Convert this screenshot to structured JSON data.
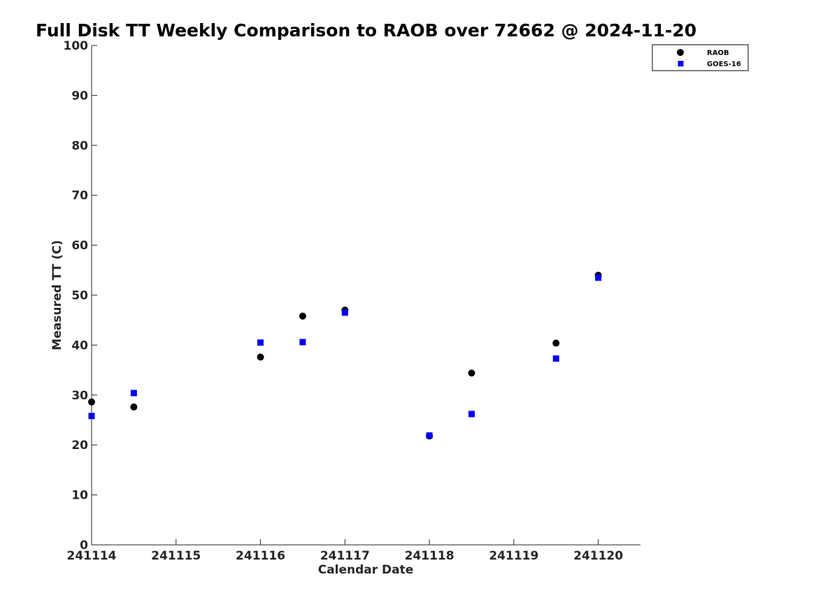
{
  "chart_data": {
    "type": "scatter",
    "title": "Full Disk TT Weekly Comparison to RAOB over 72662 @ 2024-11-20",
    "xlabel": "Calendar Date",
    "ylabel": "Measured TT (C)",
    "xlim": [
      241114,
      241120.5
    ],
    "ylim": [
      0,
      100
    ],
    "x_ticks": [
      241114,
      241115,
      241116,
      241117,
      241118,
      241119,
      241120
    ],
    "x_tick_labels": [
      "241114",
      "241115",
      "241116",
      "241117",
      "241118",
      "241119",
      "241120"
    ],
    "y_ticks": [
      0,
      10,
      20,
      30,
      40,
      50,
      60,
      70,
      80,
      90,
      100
    ],
    "y_tick_labels": [
      "0",
      "10",
      "20",
      "30",
      "40",
      "50",
      "60",
      "70",
      "80",
      "90",
      "100"
    ],
    "grid": false,
    "legend_position": "top-right",
    "series": [
      {
        "name": "RAOB",
        "marker": "circle",
        "color": "#000000",
        "x": [
          241114,
          241114.5,
          241116,
          241116.5,
          241117,
          241118,
          241118.5,
          241119.5,
          241120
        ],
        "y": [
          28.6,
          27.6,
          37.6,
          45.8,
          47.0,
          21.8,
          34.4,
          40.4,
          54.0
        ]
      },
      {
        "name": "GOES-16",
        "marker": "square",
        "color": "#0000ee",
        "x": [
          241114,
          241114.5,
          241116,
          241116.5,
          241117,
          241118,
          241118.5,
          241119.5,
          241120
        ],
        "y": [
          25.8,
          30.4,
          40.5,
          40.6,
          46.5,
          21.9,
          26.2,
          37.3,
          53.5
        ]
      }
    ]
  }
}
